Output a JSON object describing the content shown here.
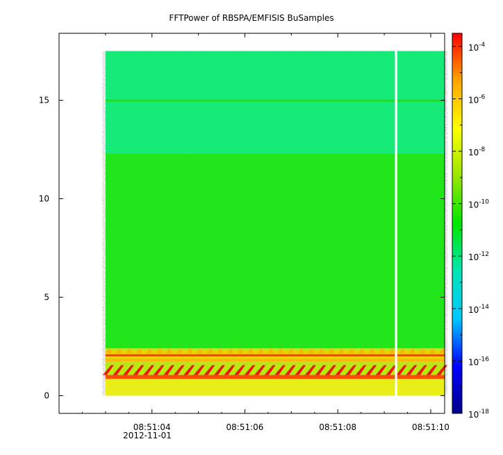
{
  "chart_data": {
    "type": "heatmap",
    "title": "FFTPower of RBSPA/EMFISIS  BuSamples",
    "xlabel": "",
    "ylabel": "",
    "x_ticks": [
      {
        "t": 4,
        "label": "08:51:04"
      },
      {
        "t": 6,
        "label": "08:51:06"
      },
      {
        "t": 8,
        "label": "08:51:08"
      },
      {
        "t": 10,
        "label": "08:51:10"
      }
    ],
    "x_minor_ticks": [
      3,
      5,
      7,
      9
    ],
    "x_date_label": "2012-11-01",
    "xlim": [
      2,
      10.3
    ],
    "y_ticks": [
      0,
      5,
      10,
      15
    ],
    "ylim": [
      -0.9,
      18.4
    ],
    "data_extent": {
      "x": [
        3,
        10.3
      ],
      "y": [
        0,
        17.5
      ]
    },
    "data_gap": {
      "x": [
        9.23,
        9.28
      ]
    },
    "colorbar": {
      "scale": "log",
      "range_exp": [
        -18,
        -3.5
      ],
      "tick_exponents": [
        -4,
        -6,
        -8,
        -10,
        -12,
        -14,
        -16,
        -18
      ],
      "tick_base": "10",
      "colors": [
        "#00008b",
        "#0000ff",
        "#00c8ff",
        "#00e6b4",
        "#00e600",
        "#9ae600",
        "#ffff00",
        "#ffa500",
        "#ff0000"
      ]
    },
    "bands": [
      {
        "y": [
          12.3,
          17.5
        ],
        "level": "cyan-green"
      },
      {
        "y": [
          2.4,
          12.3
        ],
        "level": "green"
      },
      {
        "y": [
          0,
          2.4
        ],
        "level": "yellow-red"
      }
    ],
    "line_15": {
      "y": 15,
      "color": "#22dd22"
    }
  }
}
